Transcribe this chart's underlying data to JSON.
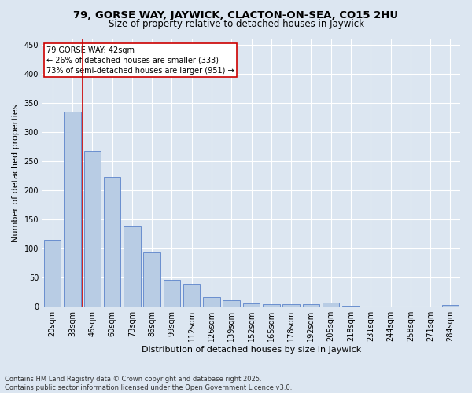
{
  "title1": "79, GORSE WAY, JAYWICK, CLACTON-ON-SEA, CO15 2HU",
  "title2": "Size of property relative to detached houses in Jaywick",
  "xlabel": "Distribution of detached houses by size in Jaywick",
  "ylabel": "Number of detached properties",
  "categories": [
    "20sqm",
    "33sqm",
    "46sqm",
    "60sqm",
    "73sqm",
    "86sqm",
    "99sqm",
    "112sqm",
    "126sqm",
    "139sqm",
    "152sqm",
    "165sqm",
    "178sqm",
    "192sqm",
    "205sqm",
    "218sqm",
    "231sqm",
    "244sqm",
    "258sqm",
    "271sqm",
    "284sqm"
  ],
  "values": [
    115,
    335,
    268,
    223,
    138,
    93,
    46,
    40,
    17,
    11,
    6,
    5,
    5,
    5,
    7,
    2,
    0,
    0,
    0,
    0,
    3
  ],
  "bar_color": "#b8cce4",
  "bar_edge_color": "#4472c4",
  "background_color": "#dce6f1",
  "grid_color": "#ffffff",
  "vline_color": "#cc0000",
  "annotation_text": "79 GORSE WAY: 42sqm\n← 26% of detached houses are smaller (333)\n73% of semi-detached houses are larger (951) →",
  "annotation_box_color": "#cc0000",
  "ylim": [
    0,
    460
  ],
  "yticks": [
    0,
    50,
    100,
    150,
    200,
    250,
    300,
    350,
    400,
    450
  ],
  "footer": "Contains HM Land Registry data © Crown copyright and database right 2025.\nContains public sector information licensed under the Open Government Licence v3.0.",
  "title_fontsize": 9.5,
  "subtitle_fontsize": 8.5,
  "tick_fontsize": 7,
  "label_fontsize": 8,
  "footer_fontsize": 6
}
